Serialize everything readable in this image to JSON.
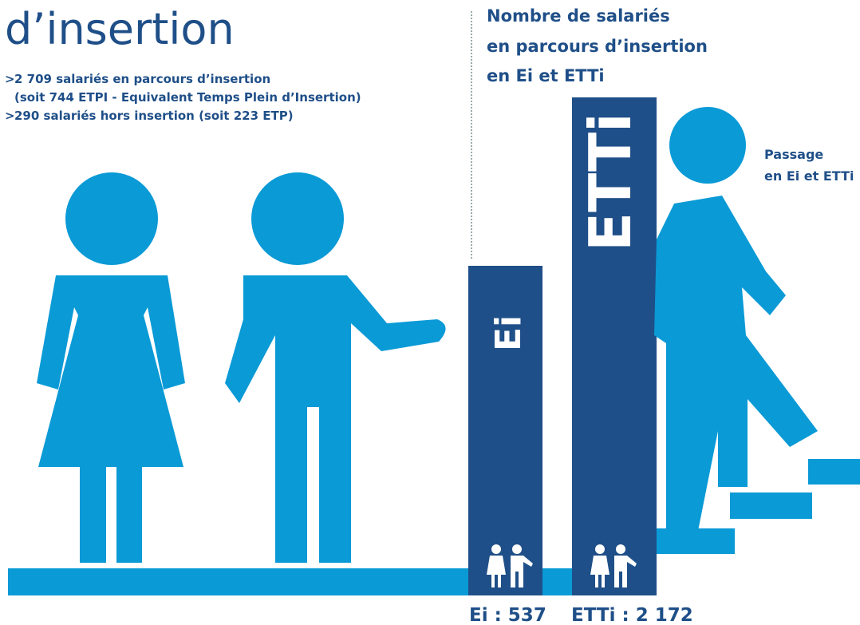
{
  "title": "d’insertion",
  "bullets": [
    {
      "marker": ">",
      "text": "2 709 salariés en parcours d’insertion"
    },
    {
      "text": "(soit 744 ETPI - Equivalent Temps Plein d’Insertion)"
    },
    {
      "marker": ">",
      "text": "290 salariés hors insertion (soit 223 ETP)"
    }
  ],
  "heading": [
    "Nombre de salariés",
    "en parcours d’insertion",
    "en Ei et ETTi"
  ],
  "bars": [
    {
      "label": "Ei",
      "caption": "Ei : 537"
    },
    {
      "label": "ETTi",
      "caption": "ETTi : 2 172"
    }
  ],
  "side_note": [
    "Passage",
    "en Ei et ETTi"
  ]
}
